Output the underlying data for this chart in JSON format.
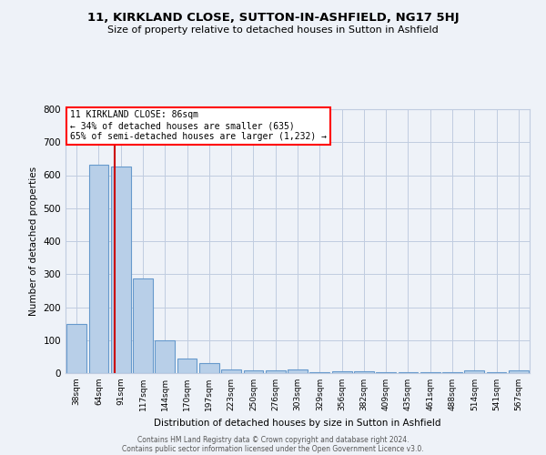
{
  "title": "11, KIRKLAND CLOSE, SUTTON-IN-ASHFIELD, NG17 5HJ",
  "subtitle": "Size of property relative to detached houses in Sutton in Ashfield",
  "xlabel": "Distribution of detached houses by size in Sutton in Ashfield",
  "ylabel": "Number of detached properties",
  "bar_labels": [
    "38sqm",
    "64sqm",
    "91sqm",
    "117sqm",
    "144sqm",
    "170sqm",
    "197sqm",
    "223sqm",
    "250sqm",
    "276sqm",
    "303sqm",
    "329sqm",
    "356sqm",
    "382sqm",
    "409sqm",
    "435sqm",
    "461sqm",
    "488sqm",
    "514sqm",
    "541sqm",
    "567sqm"
  ],
  "bar_values": [
    148,
    633,
    625,
    287,
    100,
    44,
    30,
    12,
    8,
    8,
    10,
    2,
    5,
    5,
    2,
    2,
    2,
    2,
    8,
    2,
    7
  ],
  "bar_color": "#b8cfe8",
  "bar_edge_color": "#6699cc",
  "ylim": [
    0,
    800
  ],
  "yticks": [
    0,
    100,
    200,
    300,
    400,
    500,
    600,
    700,
    800
  ],
  "annotation_title": "11 KIRKLAND CLOSE: 86sqm",
  "annotation_line1": "← 34% of detached houses are smaller (635)",
  "annotation_line2": "65% of semi-detached houses are larger (1,232) →",
  "vline_color": "#cc0000",
  "footer_line1": "Contains HM Land Registry data © Crown copyright and database right 2024.",
  "footer_line2": "Contains public sector information licensed under the Open Government Licence v3.0.",
  "bg_color": "#eef2f8",
  "grid_color": "#c0cce0"
}
